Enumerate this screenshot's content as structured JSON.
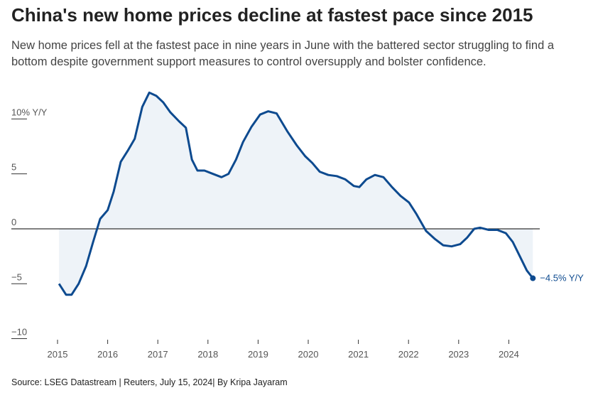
{
  "chart_data": {
    "type": "line",
    "title": "China's new home prices decline at fastest pace since 2015",
    "subtitle": "New home prices fell at the fastest pace in nine years in June with the battered sector struggling to find a bottom despite government support measures to control oversupply and bolster confidence.",
    "source": "Source: LSEG Datastream | Reuters, July 15, 2024| By Kripa Jayaram",
    "end_label": "−4.5% Y/Y",
    "xlim": [
      2014.5,
      2025
    ],
    "xticks": [
      2015,
      2016,
      2017,
      2018,
      2019,
      2020,
      2021,
      2022,
      2023,
      2024
    ],
    "ylim": [
      -11,
      13
    ],
    "yticks": [
      {
        "value": -10,
        "label": "−10"
      },
      {
        "value": -5,
        "label": "−5"
      },
      0,
      5,
      {
        "value": 10,
        "label": "10% Y/Y"
      }
    ],
    "series": [
      {
        "color": "#0d4a8f",
        "fill": "#eef3f8",
        "x": [
          2015.03,
          2015.17,
          2015.28,
          2015.42,
          2015.57,
          2015.71,
          2015.85,
          2016.0,
          2016.12,
          2016.26,
          2016.4,
          2016.54,
          2016.69,
          2016.83,
          2016.97,
          2017.11,
          2017.25,
          2017.42,
          2017.56,
          2017.68,
          2017.79,
          2017.93,
          2018.1,
          2018.27,
          2018.41,
          2018.56,
          2018.7,
          2018.87,
          2019.04,
          2019.2,
          2019.37,
          2019.58,
          2019.77,
          2019.94,
          2020.08,
          2020.23,
          2020.4,
          2020.57,
          2020.74,
          2020.91,
          2021.02,
          2021.16,
          2021.33,
          2021.5,
          2021.67,
          2021.84,
          2022.01,
          2022.15,
          2022.35,
          2022.52,
          2022.69,
          2022.86,
          2023.03,
          2023.17,
          2023.31,
          2023.43,
          2023.6,
          2023.77,
          2023.94,
          2024.08,
          2024.22,
          2024.36,
          2024.48
        ],
        "values": [
          -5.0,
          -6.0,
          -6.0,
          -5.0,
          -3.4,
          -1.2,
          0.9,
          1.7,
          3.4,
          6.1,
          7.1,
          8.2,
          11.1,
          12.4,
          12.1,
          11.5,
          10.6,
          9.8,
          9.2,
          6.3,
          5.3,
          5.3,
          5.0,
          4.7,
          5.0,
          6.3,
          7.9,
          9.3,
          10.4,
          10.7,
          10.5,
          8.9,
          7.6,
          6.6,
          6.0,
          5.2,
          4.9,
          4.8,
          4.5,
          3.9,
          3.8,
          4.5,
          4.9,
          4.7,
          3.8,
          3.0,
          2.4,
          1.4,
          -0.2,
          -0.9,
          -1.5,
          -1.6,
          -1.4,
          -0.8,
          0.0,
          0.1,
          -0.1,
          -0.1,
          -0.4,
          -1.2,
          -2.5,
          -3.8,
          -4.5
        ]
      }
    ]
  }
}
